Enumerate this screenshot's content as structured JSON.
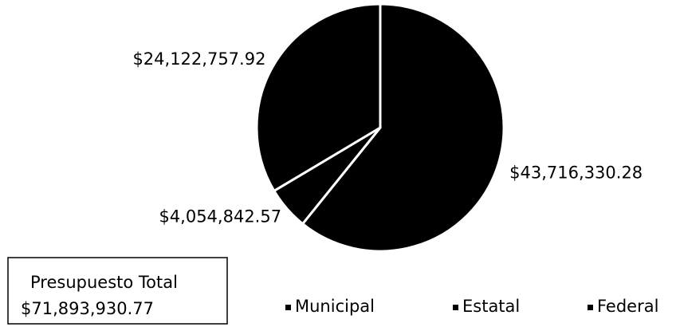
{
  "chart_data": {
    "type": "pie",
    "categories": [
      "Municipal",
      "Estatal",
      "Federal"
    ],
    "values": [
      43716330.28,
      4054842.57,
      24122757.92
    ],
    "value_labels": [
      "$43,716,330.28",
      "$4,054,842.57",
      "$24,122,757.92"
    ],
    "colors": [
      "#000000",
      "#000000",
      "#000000"
    ],
    "annotations": [
      "Presupuesto Total",
      "$71,893,930.77"
    ]
  }
}
